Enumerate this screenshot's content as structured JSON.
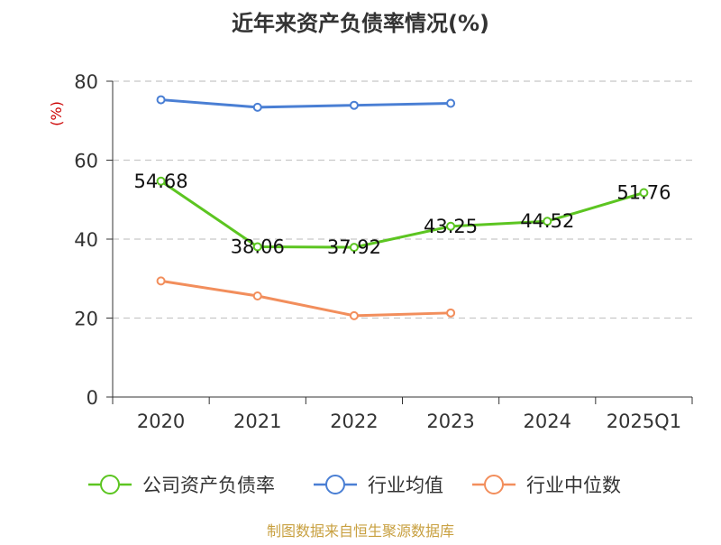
{
  "chart_data": {
    "type": "line",
    "title": "近年来资产负债率情况(%)",
    "ylabel": "(%)",
    "xlabel": "",
    "categories": [
      "2020",
      "2021",
      "2022",
      "2023",
      "2024",
      "2025Q1"
    ],
    "ylim": [
      0,
      80
    ],
    "yticks": [
      "0",
      "20",
      "40",
      "60",
      "80"
    ],
    "grid": true,
    "legend_position": "bottom",
    "series": [
      {
        "name": "公司资产负债率",
        "color": "#5cc521",
        "values": [
          54.68,
          38.06,
          37.92,
          43.25,
          44.52,
          51.76
        ],
        "labels": [
          "54.68",
          "38.06",
          "37.92",
          "43.25",
          "44.52",
          "51.76"
        ]
      },
      {
        "name": "行业均值",
        "color": "#4a7fd4",
        "values": [
          75.3,
          73.4,
          73.9,
          74.4,
          null,
          null
        ]
      },
      {
        "name": "行业中位数",
        "color": "#f28e5c",
        "values": [
          29.4,
          25.6,
          20.6,
          21.3,
          null,
          null
        ]
      }
    ],
    "source": "制图数据来自恒生聚源数据库",
    "source_color": "#c8a040"
  }
}
